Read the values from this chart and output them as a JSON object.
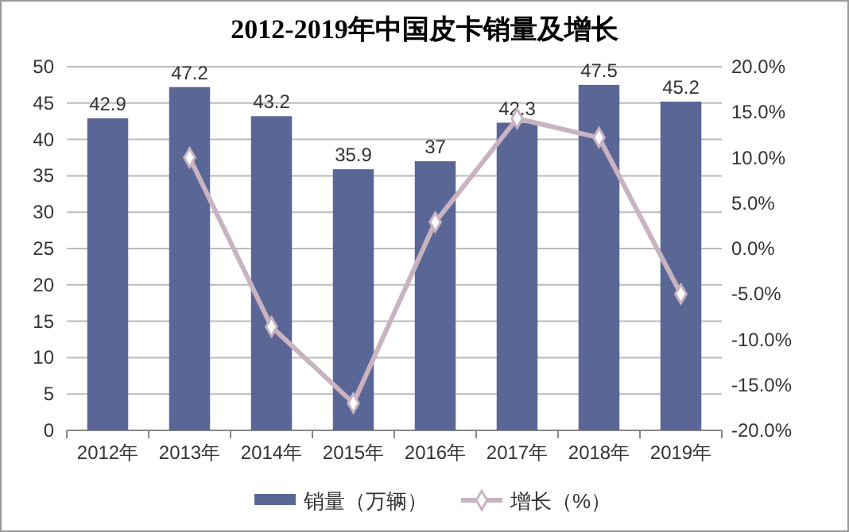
{
  "chart_data": {
    "type": "bar",
    "title": "2012-2019年中国皮卡销量及增长",
    "categories": [
      "2012年",
      "2013年",
      "2014年",
      "2015年",
      "2016年",
      "2017年",
      "2018年",
      "2019年"
    ],
    "series": [
      {
        "name": "销量（万辆）",
        "color": "#5a6796",
        "values": [
          42.9,
          47.2,
          43.2,
          35.9,
          37,
          42.3,
          47.5,
          45.2
        ],
        "value_labels": [
          "42.9",
          "47.2",
          "43.2",
          "35.9",
          "37",
          "42.3",
          "47.5",
          "45.2"
        ]
      },
      {
        "name": "增长（%）",
        "type": "line",
        "axis": "y2",
        "color": "#c9b3c1",
        "marker": "diamond",
        "values": [
          null,
          10.0,
          -8.6,
          -17.0,
          2.9,
          14.3,
          12.2,
          -5.0
        ]
      }
    ],
    "ylim": [
      0,
      50
    ],
    "yticks": [
      0,
      5,
      10,
      15,
      20,
      25,
      30,
      35,
      40,
      45,
      50
    ],
    "y2lim": [
      -20,
      20
    ],
    "y2ticks": [
      {
        "value": -20,
        "label": "-20.0%"
      },
      {
        "value": -15,
        "label": "-15.0%"
      },
      {
        "value": -10,
        "label": "-10.0%"
      },
      {
        "value": -5,
        "label": "-5.0%"
      },
      {
        "value": 0,
        "label": "0.0%"
      },
      {
        "value": 5,
        "label": "5.0%"
      },
      {
        "value": 10,
        "label": "10.0%"
      },
      {
        "value": 15,
        "label": "15.0%"
      },
      {
        "value": 20,
        "label": "20.0%"
      }
    ],
    "grid": "y",
    "legend": "bottom"
  }
}
